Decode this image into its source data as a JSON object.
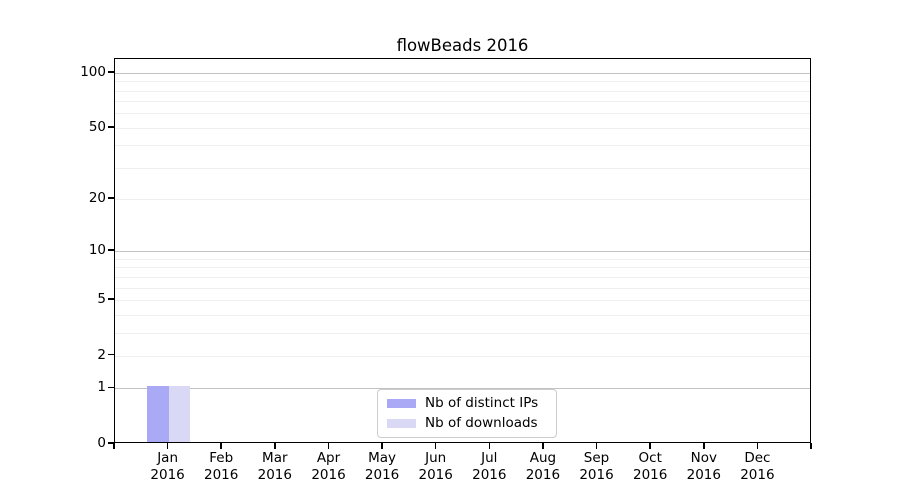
{
  "chart_data": {
    "type": "bar",
    "title": "flowBeads 2016",
    "xlabel": "",
    "ylabel": "",
    "months": [
      "Jan",
      "Feb",
      "Mar",
      "Apr",
      "May",
      "Jun",
      "Jul",
      "Aug",
      "Sep",
      "Oct",
      "Nov",
      "Dec"
    ],
    "year_label": "2016",
    "series": [
      {
        "name": "Nb of distinct IPs",
        "color": "#a9a9f6",
        "values": [
          1,
          0,
          0,
          0,
          0,
          0,
          0,
          0,
          0,
          0,
          0,
          0
        ]
      },
      {
        "name": "Nb of downloads",
        "color": "#d9d9f6",
        "values": [
          1,
          0,
          0,
          0,
          0,
          0,
          0,
          0,
          0,
          0,
          0,
          0
        ]
      }
    ],
    "yscale": "log1p",
    "ylim": [
      0,
      119
    ],
    "yticks_labeled": [
      0,
      1,
      2,
      5,
      10,
      20,
      50,
      100
    ],
    "gridlines_major": [
      1,
      10,
      100
    ],
    "gridlines_minor": [
      2,
      3,
      4,
      5,
      6,
      7,
      8,
      9,
      20,
      30,
      40,
      50,
      60,
      70,
      80,
      90
    ],
    "grid": "horizontal",
    "legend_position": "lower center",
    "colors": {
      "spine": "#000000",
      "grid_major": "#c2c2c2",
      "grid_minor": "#efefef",
      "legend_border": "#cccccc",
      "text": "#000000"
    }
  }
}
